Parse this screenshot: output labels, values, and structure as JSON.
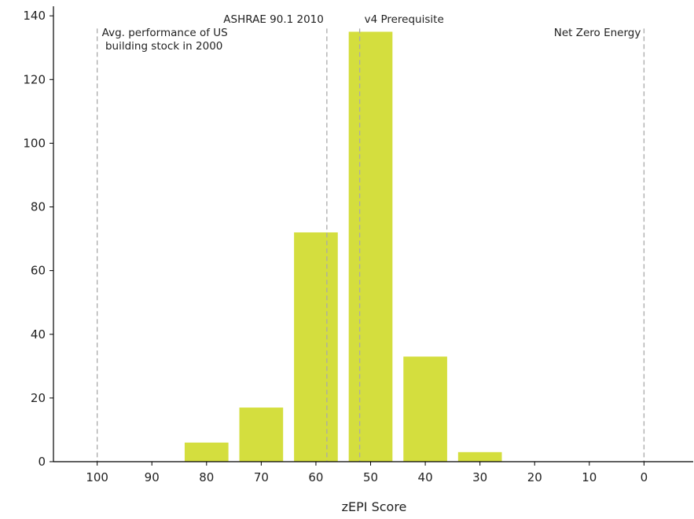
{
  "chart_data": {
    "type": "bar",
    "title": "",
    "xlabel": "zEPI Score",
    "ylabel": "",
    "x_reversed": true,
    "xlim": [
      108,
      -9
    ],
    "ylim": [
      0,
      143
    ],
    "x_ticks": [
      100,
      90,
      80,
      70,
      60,
      50,
      40,
      30,
      20,
      10,
      0
    ],
    "y_ticks": [
      0,
      20,
      40,
      60,
      80,
      100,
      120,
      140
    ],
    "grid": false,
    "bar_color": "#d4de3e",
    "bar_width": 8,
    "bars": [
      {
        "x": 80,
        "value": 6
      },
      {
        "x": 70,
        "value": 17
      },
      {
        "x": 60,
        "value": 72
      },
      {
        "x": 50,
        "value": 135
      },
      {
        "x": 40,
        "value": 33
      },
      {
        "x": 30,
        "value": 3
      }
    ],
    "reference_lines": [
      {
        "x": 100,
        "label_lines": [
          "Avg. performance of US",
          " building stock in 2000"
        ],
        "label_side": "right"
      },
      {
        "x": 58,
        "label_lines": [
          "ASHRAE 90.1 2010"
        ],
        "label_side": "left"
      },
      {
        "x": 52,
        "label_lines": [
          "v4 Prerequisite"
        ],
        "label_side": "right"
      },
      {
        "x": 0,
        "label_lines": [
          "Net Zero Energy"
        ],
        "label_side": "left"
      }
    ],
    "reference_line_color": "#aaaaaa"
  }
}
